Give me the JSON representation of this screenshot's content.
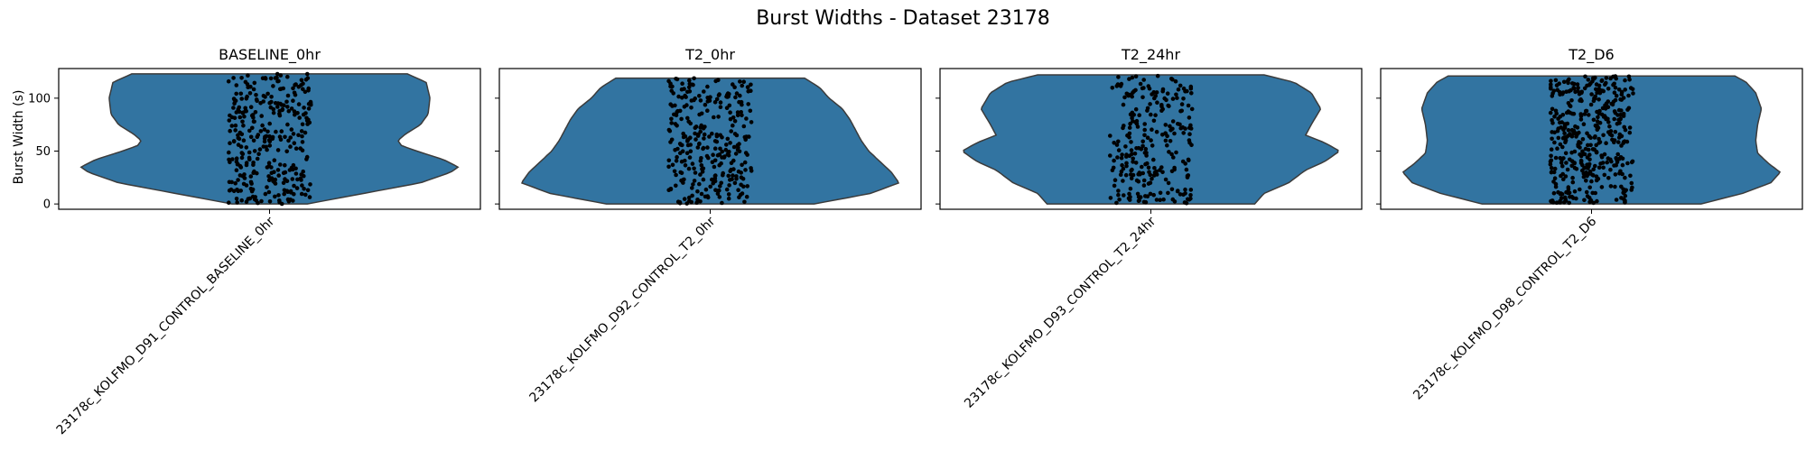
{
  "chart_data": {
    "type": "violin",
    "title": "Burst Widths - Dataset 23178",
    "ylabel": "Burst Width (s)",
    "ylim": [
      -5,
      128
    ],
    "yticks": [
      0,
      50,
      100
    ],
    "violin_color": "#3274a1",
    "point_color": "#000000",
    "panels": [
      {
        "title": "BASELINE_0hr",
        "category": "23178c_KOLFMO_D91_CONTROL_BASELINE_0hr",
        "range": [
          0,
          123
        ],
        "n_points": 320,
        "profile": [
          [
            0,
            0.2
          ],
          [
            10,
            0.5
          ],
          [
            20,
            0.8
          ],
          [
            30,
            0.96
          ],
          [
            35,
            1.0
          ],
          [
            42,
            0.92
          ],
          [
            50,
            0.78
          ],
          [
            55,
            0.7
          ],
          [
            60,
            0.68
          ],
          [
            66,
            0.72
          ],
          [
            75,
            0.8
          ],
          [
            85,
            0.84
          ],
          [
            100,
            0.85
          ],
          [
            115,
            0.83
          ],
          [
            123,
            0.73
          ]
        ]
      },
      {
        "title": "T2_0hr",
        "category": "23178c_KOLFMO_D92_CONTROL_T2_0hr",
        "range": [
          0,
          119
        ],
        "n_points": 300,
        "profile": [
          [
            0,
            0.55
          ],
          [
            10,
            0.85
          ],
          [
            20,
            1.0
          ],
          [
            30,
            0.96
          ],
          [
            40,
            0.9
          ],
          [
            50,
            0.84
          ],
          [
            60,
            0.8
          ],
          [
            70,
            0.77
          ],
          [
            80,
            0.74
          ],
          [
            90,
            0.7
          ],
          [
            100,
            0.63
          ],
          [
            110,
            0.58
          ],
          [
            119,
            0.5
          ]
        ]
      },
      {
        "title": "T2_24hr",
        "category": "23178c_KOLFMO_D93_CONTROL_T2_24hr",
        "range": [
          0,
          122
        ],
        "n_points": 260,
        "profile": [
          [
            0,
            0.55
          ],
          [
            10,
            0.6
          ],
          [
            20,
            0.73
          ],
          [
            32,
            0.82
          ],
          [
            40,
            0.92
          ],
          [
            50,
            1.0
          ],
          [
            58,
            0.92
          ],
          [
            65,
            0.82
          ],
          [
            75,
            0.85
          ],
          [
            90,
            0.9
          ],
          [
            105,
            0.85
          ],
          [
            115,
            0.76
          ],
          [
            122,
            0.6
          ]
        ]
      },
      {
        "title": "T2_D6",
        "category": "23178c_KOLFMO_D98_CONTROL_T2_D6",
        "range": [
          0,
          121
        ],
        "n_points": 420,
        "profile": [
          [
            0,
            0.58
          ],
          [
            10,
            0.8
          ],
          [
            20,
            0.95
          ],
          [
            30,
            1.0
          ],
          [
            38,
            0.94
          ],
          [
            48,
            0.88
          ],
          [
            60,
            0.87
          ],
          [
            75,
            0.88
          ],
          [
            90,
            0.9
          ],
          [
            105,
            0.87
          ],
          [
            115,
            0.82
          ],
          [
            121,
            0.76
          ]
        ]
      }
    ]
  }
}
